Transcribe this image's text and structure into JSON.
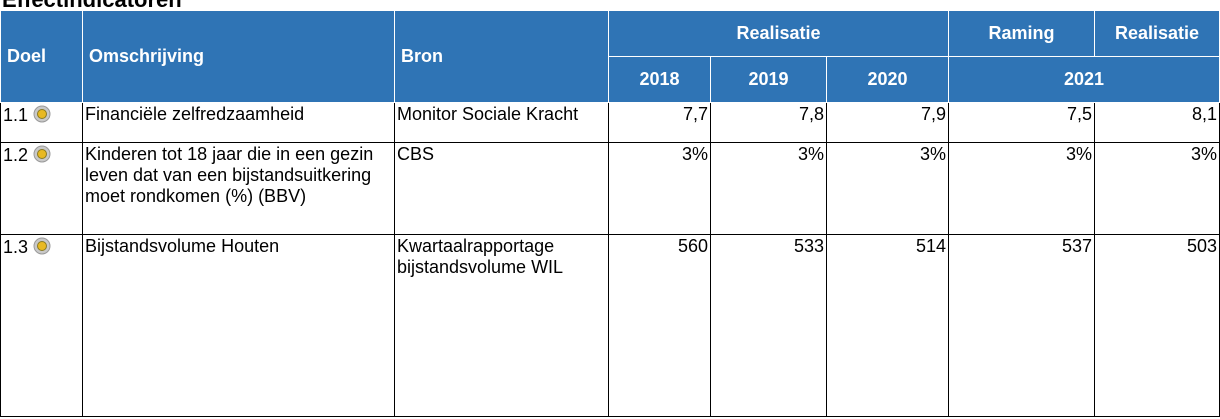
{
  "title": "Effectindicatoren",
  "table": {
    "header": {
      "doel": "Doel",
      "omschrijving": "Omschrijving",
      "bron": "Bron",
      "realisatie": "Realisatie",
      "raming": "Raming",
      "realisatie2": "Realisatie",
      "years": [
        "2018",
        "2019",
        "2020"
      ],
      "year2021": "2021"
    },
    "rows": [
      [
        "1.1",
        "Financiële zelfredzaamheid",
        "Monitor Sociale Kracht",
        "7,7",
        "7,8",
        "7,9",
        "7,5",
        "8,1"
      ],
      [
        "1.2",
        "Kinderen tot 18 jaar die in een gezin leven dat van een bijstandsuitkering moet rondkomen (%) (BBV)",
        "CBS",
        "3%",
        "3%",
        "3%",
        "3%",
        "3%"
      ],
      [
        "1.3",
        "Bijstandsvolume Houten",
        "Kwartaalrapportage bijstandsvolume WIL",
        "560",
        "533",
        "514",
        "537",
        "503"
      ]
    ]
  }
}
